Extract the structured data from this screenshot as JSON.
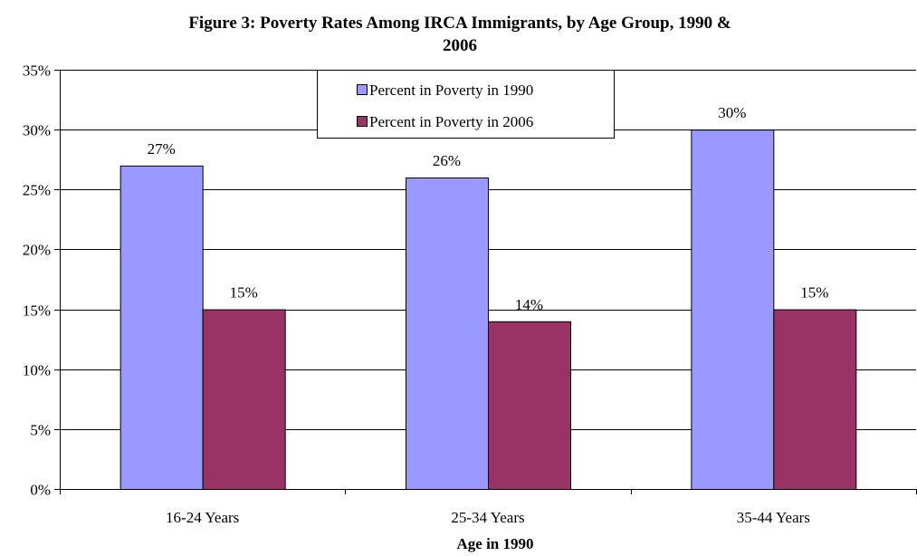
{
  "chart_data": {
    "type": "bar",
    "title_lines": [
      "Figure 3: Poverty Rates Among IRCA Immigrants, by Age Group, 1990 &",
      "2006"
    ],
    "xlabel": "Age in 1990",
    "ylabel": "",
    "categories": [
      "16-24 Years",
      "25-34 Years",
      "35-44 Years"
    ],
    "series": [
      {
        "name": "Percent in Poverty in 1990",
        "values": [
          27,
          26,
          30
        ],
        "labels": [
          "27%",
          "26%",
          "30%"
        ],
        "color": "#9999ff"
      },
      {
        "name": "Percent in Poverty in 2006",
        "values": [
          15,
          14,
          15
        ],
        "labels": [
          "15%",
          "14%",
          "15%"
        ],
        "color": "#993366"
      }
    ],
    "ylim": [
      0,
      35
    ],
    "yticks": [
      0,
      5,
      10,
      15,
      20,
      25,
      30,
      35
    ],
    "ytick_labels": [
      "0%",
      "5%",
      "10%",
      "15%",
      "20%",
      "25%",
      "30%",
      "35%"
    ],
    "grid": true,
    "legend_position": "top-center"
  }
}
